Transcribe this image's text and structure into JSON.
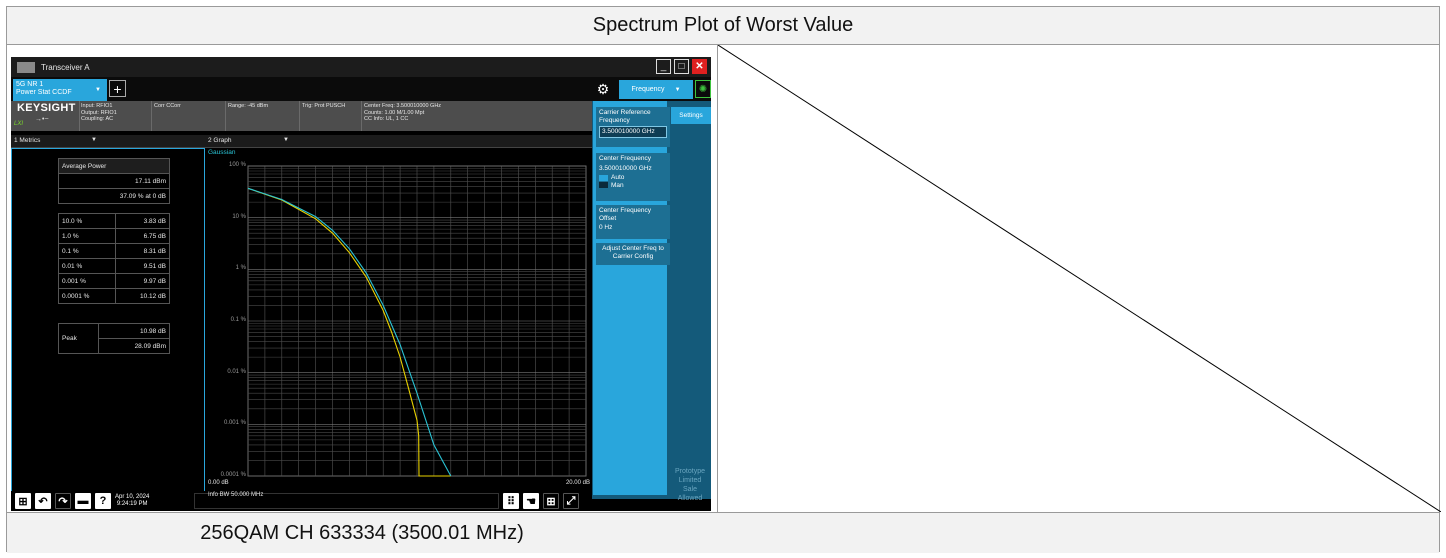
{
  "table": {
    "title": "Spectrum Plot of Worst Value",
    "caption_left": "256QAM CH 633334 (3500.01 MHz)",
    "caption_right": ""
  },
  "instrument": {
    "window_title": "Transceiver A",
    "mode_tab": {
      "line1": "5G NR 1",
      "line2": "Power Stat CCDF"
    },
    "add_tab_label": "+",
    "frequency_tab_label": "Frequency",
    "logo": "KEYSIGHT",
    "lxi": "LXI",
    "info": {
      "input_lines": [
        "Input: RFIO1",
        "Output: RFIO1",
        "Coupling: AC"
      ],
      "corr": "Corr CCorr",
      "range": "Range: -45 dBm",
      "trig": "Trig: Prot PUSCH",
      "center_lines": [
        "Center Freq: 3.500010000 GHz",
        "Counts: 1.00 M/1.00 Mpt",
        "CC Info: UL, 1 CC"
      ]
    },
    "metrics": {
      "header": "1 Metrics",
      "avg_label": "Average Power",
      "avg_value": "17.11 dBm",
      "avg_pct": "37.09 % at 0 dB",
      "rows": [
        {
          "p": "10.0 %",
          "v": "3.83 dB"
        },
        {
          "p": "1.0 %",
          "v": "6.75 dB"
        },
        {
          "p": "0.1 %",
          "v": "8.31 dB"
        },
        {
          "p": "0.01 %",
          "v": "9.51 dB"
        },
        {
          "p": "0.001 %",
          "v": "9.97 dB"
        },
        {
          "p": "0.0001 %",
          "v": "10.12 dB"
        }
      ],
      "peak_label": "Peak",
      "peak_db": "10.98 dB",
      "peak_dbm": "28.09 dBm"
    },
    "graph": {
      "header": "2 Graph",
      "legend": "Gaussian",
      "y_labels": [
        "100 %",
        "10 %",
        "1 %",
        "0.1 %",
        "0.01 %",
        "0.001 %",
        "0.0001 %"
      ],
      "x_start": "0.00 dB",
      "x_end": "20.00 dB",
      "info_bw": "Info BW 50.000 MHz"
    },
    "chart_data": {
      "type": "line",
      "xlim": [
        0,
        20
      ],
      "ylim": [
        0.0001,
        100
      ],
      "yscale": "log",
      "series": [
        {
          "name": "",
          "color": "#e8d200",
          "x": [
            0,
            2,
            4,
            5,
            6,
            7,
            8,
            8.5,
            9,
            9.5,
            10,
            10.1,
            10.12,
            11,
            12
          ],
          "y": [
            37,
            22,
            9.5,
            5,
            2.1,
            0.7,
            0.16,
            0.06,
            0.02,
            0.005,
            0.0012,
            0.0006,
            0.0001,
            0.0001,
            0.0001
          ]
        },
        {
          "name": "Gaussian",
          "color": "#2ac3d4",
          "x": [
            0,
            2,
            4,
            5,
            6,
            7,
            8,
            9,
            10,
            11,
            12
          ],
          "y": [
            37,
            22.5,
            10.5,
            5.7,
            2.5,
            0.85,
            0.2,
            0.035,
            0.004,
            0.0004,
            0.0001
          ]
        }
      ]
    },
    "softkeys": {
      "carrier_ref": {
        "label": "Carrier Reference Frequency",
        "value": "3.500010000 GHz"
      },
      "center_freq": {
        "label": "Center Frequency",
        "value": "3.500010000 GHz"
      },
      "auto": "Auto",
      "man": "Man",
      "cf_offset": {
        "label": "Center Frequency Offset",
        "value": "0 Hz"
      },
      "adjust": "Adjust Center Freq to Carrier Config"
    },
    "settings_tab": "Settings",
    "watermark": [
      "Prototype",
      "Limited",
      "Sale",
      "Allowed"
    ],
    "taskbar": {
      "date": "Apr 10, 2024",
      "time": "9:24:19 PM"
    },
    "colors": {
      "accent": "#29a6dc",
      "yellow_trace": "#e8d200",
      "cyan_trace": "#2ac3d4",
      "close": "#e02020"
    }
  }
}
